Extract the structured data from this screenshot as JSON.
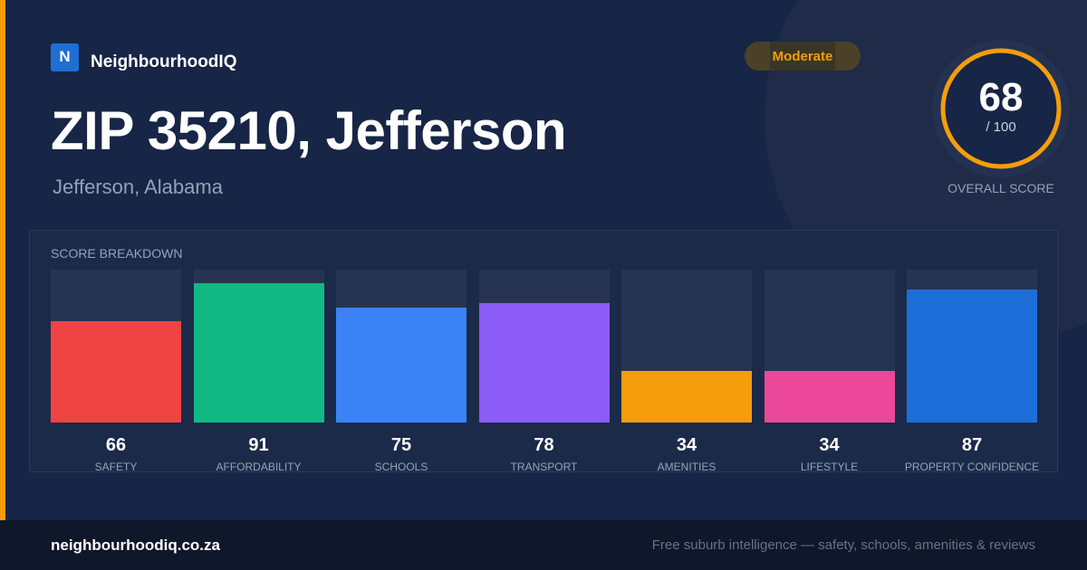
{
  "brand": {
    "logo_letter": "N",
    "name": "NeighbourhoodIQ"
  },
  "badge": {
    "label": "Moderate",
    "color": "#f59e0b"
  },
  "header": {
    "title": "ZIP 35210, Jefferson",
    "subtitle": "Jefferson, Alabama"
  },
  "overall": {
    "score": "68",
    "max_label": "/ 100",
    "score_value": 68,
    "score_max": 100,
    "caption": "OVERALL SCORE",
    "ring_color": "#f59e0b"
  },
  "breakdown": {
    "title": "SCORE BREAKDOWN",
    "max": 100,
    "items": [
      {
        "label": "SAFETY",
        "value": 66,
        "color": "#ef4444"
      },
      {
        "label": "AFFORDABILITY",
        "value": 91,
        "color": "#10b981"
      },
      {
        "label": "SCHOOLS",
        "value": 75,
        "color": "#3b82f6"
      },
      {
        "label": "TRANSPORT",
        "value": 78,
        "color": "#8b5cf6"
      },
      {
        "label": "AMENITIES",
        "value": 34,
        "color": "#f59e0b"
      },
      {
        "label": "LIFESTYLE",
        "value": 34,
        "color": "#ec4899"
      },
      {
        "label": "PROPERTY CONFIDENCE",
        "value": 87,
        "color": "#1d6ed8"
      }
    ]
  },
  "footer": {
    "domain": "neighbourhoodiq.co.za",
    "tagline": "Free suburb intelligence — safety, schools, amenities & reviews"
  }
}
